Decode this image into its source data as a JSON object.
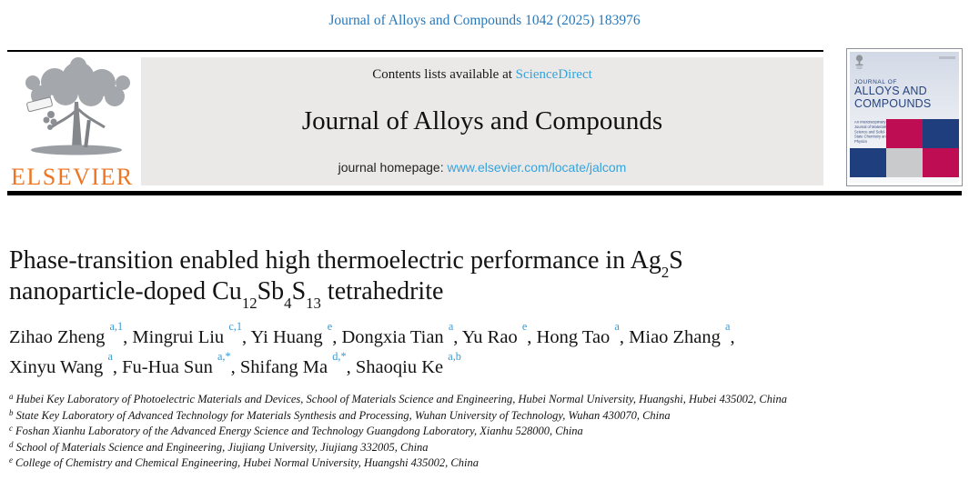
{
  "citation": "Journal of Alloys and Compounds 1042 (2025) 183976",
  "publisher": {
    "wordmark": "ELSEVIER"
  },
  "banner": {
    "contents_prefix": "Contents lists available at ",
    "sciencedirect_link": "ScienceDirect",
    "journal_title": "Journal of Alloys and Compounds",
    "homepage_prefix": "journal homepage: ",
    "homepage_link": "www.elsevier.com/locate/jalcom"
  },
  "cover": {
    "kicker": "JOURNAL OF",
    "name_line1": "ALLOYS AND",
    "name_line2": "COMPOUNDS",
    "subtitle": "An Interdisciplinary Journal of Materials Science and Solid-State Chemistry and Physics"
  },
  "article": {
    "title_line1": [
      {
        "t": "Phase-transition enabled high thermoelectric performance in Ag"
      },
      {
        "t": "2",
        "s": "sub"
      },
      {
        "t": "S"
      }
    ],
    "title_line2": [
      {
        "t": "nanoparticle-doped Cu"
      },
      {
        "t": "12",
        "s": "sub"
      },
      {
        "t": "Sb"
      },
      {
        "t": "4",
        "s": "sub"
      },
      {
        "t": "S"
      },
      {
        "t": "13",
        "s": "sub"
      },
      {
        "t": " tetrahedrite"
      }
    ],
    "authors_line1": [
      {
        "t": "Zihao Zheng "
      },
      {
        "t": "a,1",
        "s": "sup",
        "cls": "au"
      },
      {
        "t": ", Mingrui Liu "
      },
      {
        "t": "c,1",
        "s": "sup",
        "cls": "au"
      },
      {
        "t": ", Yi Huang "
      },
      {
        "t": "e",
        "s": "sup",
        "cls": "au"
      },
      {
        "t": ", Dongxia Tian "
      },
      {
        "t": "a",
        "s": "sup",
        "cls": "au"
      },
      {
        "t": ", Yu Rao "
      },
      {
        "t": "e",
        "s": "sup",
        "cls": "au"
      },
      {
        "t": ", Hong Tao "
      },
      {
        "t": "a",
        "s": "sup",
        "cls": "au"
      },
      {
        "t": ", Miao Zhang "
      },
      {
        "t": "a",
        "s": "sup",
        "cls": "au"
      },
      {
        "t": ","
      }
    ],
    "authors_line2": [
      {
        "t": "Xinyu Wang "
      },
      {
        "t": "a",
        "s": "sup",
        "cls": "au"
      },
      {
        "t": ", Fu-Hua Sun "
      },
      {
        "t": "a,*",
        "s": "sup",
        "cls": "au"
      },
      {
        "t": ", Shifang Ma "
      },
      {
        "t": "d,*",
        "s": "sup",
        "cls": "au"
      },
      {
        "t": ", Shaoqiu Ke "
      },
      {
        "t": "a,b",
        "s": "sup",
        "cls": "au"
      }
    ]
  },
  "affiliations": [
    {
      "marker": "a",
      "text": "Hubei Key Laboratory of Photoelectric Materials and Devices, School of Materials Science and Engineering, Hubei Normal University, Huangshi, Hubei 435002, China"
    },
    {
      "marker": "b",
      "text": "State Key Laboratory of Advanced Technology for Materials Synthesis and Processing, Wuhan University of Technology, Wuhan 430070, China"
    },
    {
      "marker": "c",
      "text": "Foshan Xianhu Laboratory of the Advanced Energy Science and Technology Guangdong Laboratory, Xianhu 528000, China"
    },
    {
      "marker": "d",
      "text": "School of Materials Science and Engineering, Jiujiang University, Jiujiang 332005, China"
    },
    {
      "marker": "e",
      "text": "College of Chemistry and Chemical Engineering, Hubei Normal University, Huangshi 435002, China"
    }
  ],
  "colors": {
    "citation_blue": "#2878b8",
    "link_blue": "#35a3dc",
    "superscript_blue": "#3a9bd5",
    "elsevier_orange": "#ee7623",
    "banner_gray": "#eae9e7",
    "cover_navy": "#1e3e7d",
    "cover_crimson": "#be0d53",
    "cover_gray": "#c8cacc"
  }
}
